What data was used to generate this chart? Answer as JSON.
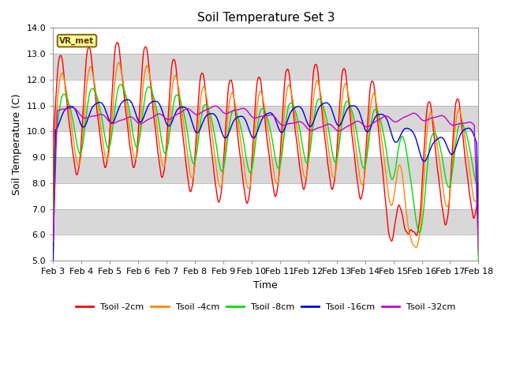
{
  "title": "Soil Temperature Set 3",
  "xlabel": "Time",
  "ylabel": "Soil Temperature (C)",
  "ylim": [
    5.0,
    14.0
  ],
  "yticks": [
    5.0,
    6.0,
    7.0,
    8.0,
    9.0,
    10.0,
    11.0,
    12.0,
    13.0,
    14.0
  ],
  "xtick_labels": [
    "Feb 3",
    "Feb 4",
    "Feb 5",
    "Feb 6",
    "Feb 7",
    "Feb 8",
    "Feb 9",
    "Feb 10",
    "Feb 11",
    "Feb 12",
    "Feb 13",
    "Feb 14",
    "Feb 15",
    "Feb 16",
    "Feb 17",
    "Feb 18"
  ],
  "series": {
    "Tsoil -2cm": {
      "color": "#ff0000",
      "linewidth": 1.0
    },
    "Tsoil -4cm": {
      "color": "#ff8800",
      "linewidth": 1.0
    },
    "Tsoil -8cm": {
      "color": "#00dd00",
      "linewidth": 1.0
    },
    "Tsoil -16cm": {
      "color": "#0000dd",
      "linewidth": 1.0
    },
    "Tsoil -32cm": {
      "color": "#cc00cc",
      "linewidth": 1.0
    }
  },
  "legend_label": "VR_met",
  "n_points": 720
}
